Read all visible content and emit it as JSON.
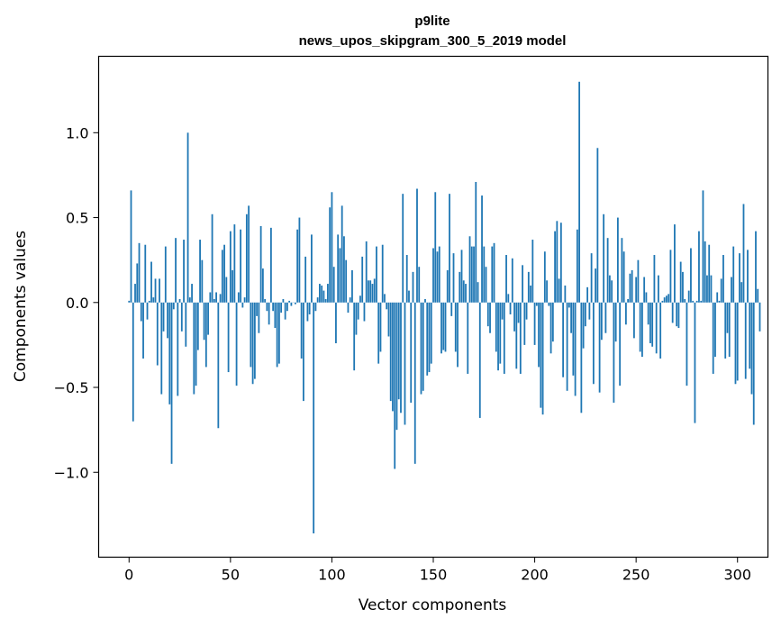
{
  "chart_data": {
    "type": "bar",
    "title": "p9lite",
    "subtitle": "news_upos_skipgram_300_5_2019 model",
    "xlabel": "Vector components",
    "ylabel": "Components values",
    "xlim": [
      -15,
      315
    ],
    "ylim": [
      -1.5,
      1.45
    ],
    "xticks": [
      0,
      50,
      100,
      150,
      200,
      250,
      300
    ],
    "xtick_labels": [
      "0",
      "50",
      "100",
      "150",
      "200",
      "250",
      "300"
    ],
    "yticks": [
      -1.0,
      -0.5,
      0.0,
      0.5,
      1.0
    ],
    "ytick_labels": [
      "−1.0",
      "−0.5",
      "0.0",
      "0.5",
      "1.0"
    ],
    "grid": false,
    "bar_color": "#1f77b4",
    "values": [
      0.01,
      0.66,
      -0.7,
      0.11,
      0.23,
      0.35,
      -0.11,
      -0.33,
      0.34,
      -0.1,
      0.01,
      0.24,
      0.03,
      0.14,
      -0.37,
      0.14,
      -0.54,
      -0.17,
      0.33,
      -0.21,
      -0.6,
      -0.95,
      -0.04,
      0.38,
      -0.55,
      0.02,
      -0.17,
      0.37,
      -0.26,
      1.0,
      0.03,
      0.11,
      -0.54,
      -0.49,
      -0.28,
      0.37,
      0.25,
      -0.22,
      -0.38,
      -0.19,
      0.06,
      0.52,
      0.02,
      0.06,
      -0.74,
      0.05,
      0.31,
      0.34,
      0.15,
      -0.41,
      0.42,
      0.19,
      0.46,
      -0.49,
      0.06,
      0.43,
      -0.03,
      0.03,
      0.52,
      0.57,
      -0.38,
      -0.48,
      -0.45,
      -0.08,
      -0.18,
      0.45,
      0.2,
      0.02,
      -0.05,
      -0.13,
      0.44,
      -0.05,
      -0.15,
      -0.38,
      -0.36,
      -0.06,
      0.02,
      -0.1,
      -0.05,
      0.01,
      -0.02,
      0.0,
      -0.01,
      0.43,
      0.5,
      -0.33,
      -0.58,
      0.27,
      -0.11,
      -0.07,
      0.4,
      -1.36,
      -0.05,
      0.03,
      0.11,
      0.1,
      0.07,
      0.02,
      0.11,
      0.56,
      0.65,
      0.21,
      -0.24,
      0.4,
      0.32,
      0.57,
      0.39,
      0.25,
      -0.06,
      0.03,
      0.19,
      -0.4,
      -0.19,
      -0.1,
      0.04,
      0.27,
      -0.11,
      0.36,
      0.13,
      0.13,
      0.11,
      0.14,
      0.33,
      -0.36,
      -0.29,
      0.34,
      0.05,
      -0.04,
      -0.2,
      -0.58,
      -0.64,
      -0.98,
      -0.75,
      -0.57,
      -0.65,
      0.64,
      -0.72,
      0.28,
      0.07,
      -0.59,
      0.18,
      -0.95,
      0.67,
      0.21,
      -0.54,
      -0.52,
      0.02,
      -0.43,
      -0.41,
      -0.36,
      0.32,
      0.65,
      0.3,
      0.33,
      -0.3,
      -0.28,
      -0.29,
      0.19,
      0.64,
      -0.08,
      0.29,
      -0.29,
      -0.38,
      0.18,
      0.31,
      0.13,
      0.11,
      -0.42,
      0.39,
      0.33,
      0.33,
      0.71,
      0.12,
      -0.68,
      0.63,
      0.33,
      0.21,
      -0.14,
      -0.18,
      0.33,
      0.35,
      -0.29,
      -0.4,
      -0.36,
      -0.1,
      -0.42,
      0.28,
      0.05,
      -0.07,
      0.26,
      -0.17,
      -0.39,
      -0.12,
      -0.42,
      0.22,
      -0.25,
      -0.1,
      0.18,
      0.1,
      0.37,
      -0.25,
      -0.02,
      -0.38,
      -0.62,
      -0.66,
      0.3,
      0.13,
      -0.02,
      -0.3,
      -0.23,
      0.42,
      0.48,
      0.14,
      0.47,
      -0.44,
      0.1,
      -0.52,
      -0.03,
      -0.18,
      -0.43,
      -0.55,
      0.43,
      1.3,
      -0.65,
      -0.27,
      -0.14,
      0.09,
      -0.1,
      0.29,
      -0.48,
      0.2,
      0.91,
      -0.53,
      -0.22,
      0.52,
      -0.18,
      0.38,
      0.16,
      0.13,
      -0.59,
      -0.23,
      0.5,
      -0.49,
      0.38,
      0.3,
      -0.13,
      0.02,
      0.17,
      0.19,
      -0.21,
      0.15,
      0.25,
      -0.29,
      -0.32,
      0.15,
      0.06,
      -0.13,
      -0.24,
      -0.26,
      0.28,
      -0.3,
      0.16,
      -0.33,
      0.01,
      0.03,
      0.04,
      0.05,
      0.31,
      -0.12,
      0.46,
      -0.14,
      -0.15,
      0.24,
      0.18,
      0.02,
      -0.49,
      0.07,
      0.32,
      0.01,
      -0.71,
      0.01,
      0.42,
      0.01,
      0.66,
      0.36,
      0.16,
      0.34,
      0.16,
      -0.42,
      -0.32,
      0.06,
      0.01,
      0.14,
      0.28,
      -0.33,
      -0.18,
      -0.32,
      0.15,
      0.33,
      -0.48,
      -0.46,
      0.29,
      0.12,
      0.58,
      -0.45,
      0.31,
      -0.39,
      -0.54,
      -0.72,
      0.42,
      0.08,
      -0.17
    ]
  }
}
